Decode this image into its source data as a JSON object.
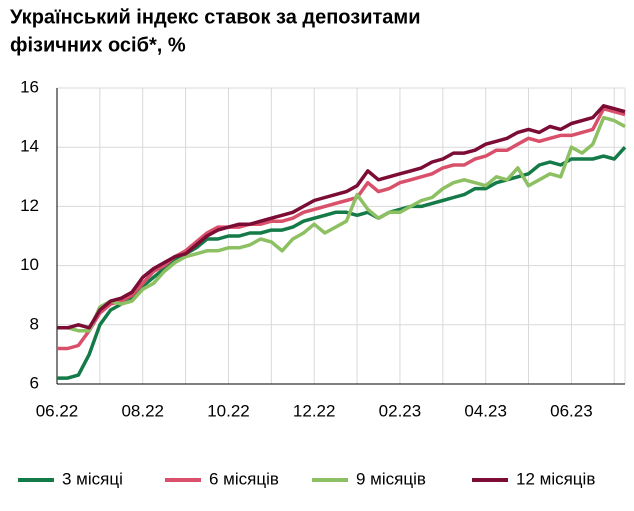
{
  "chart_data": {
    "type": "line",
    "title": [
      "Український індекс ставок за депозитами",
      "фізичних осіб*, %"
    ],
    "categories": [
      "06.22",
      null,
      null,
      null,
      null,
      null,
      null,
      null,
      "08.22",
      null,
      null,
      null,
      null,
      null,
      null,
      null,
      "10.22",
      null,
      null,
      null,
      null,
      null,
      null,
      null,
      "12.22",
      null,
      null,
      null,
      null,
      null,
      null,
      null,
      "02.23",
      null,
      null,
      null,
      null,
      null,
      null,
      null,
      "04.23",
      null,
      null,
      null,
      null,
      null,
      null,
      null,
      "06.23",
      null,
      null,
      null,
      null,
      null
    ],
    "series": [
      {
        "name": "3 місяці",
        "color": "#137a48",
        "values": [
          6.2,
          6.2,
          6.3,
          7.0,
          8.0,
          8.5,
          8.7,
          8.9,
          9.3,
          9.6,
          9.9,
          10.2,
          10.4,
          10.6,
          10.9,
          10.9,
          11.0,
          11.0,
          11.1,
          11.1,
          11.2,
          11.2,
          11.3,
          11.5,
          11.6,
          11.7,
          11.8,
          11.8,
          11.7,
          11.8,
          11.6,
          11.8,
          11.9,
          12.0,
          12.0,
          12.1,
          12.2,
          12.3,
          12.4,
          12.6,
          12.6,
          12.8,
          12.9,
          13.0,
          13.1,
          13.4,
          13.5,
          13.4,
          13.6,
          13.6,
          13.6,
          13.7,
          13.6,
          14.0
        ]
      },
      {
        "name": "6 місяців",
        "color": "#d9506b",
        "values": [
          7.2,
          7.2,
          7.3,
          7.8,
          8.4,
          8.7,
          8.8,
          9.0,
          9.4,
          9.8,
          10.0,
          10.3,
          10.5,
          10.8,
          11.1,
          11.3,
          11.3,
          11.3,
          11.4,
          11.4,
          11.5,
          11.5,
          11.6,
          11.8,
          11.9,
          12.0,
          12.1,
          12.2,
          12.3,
          12.8,
          12.5,
          12.6,
          12.8,
          12.9,
          13.0,
          13.1,
          13.3,
          13.4,
          13.4,
          13.6,
          13.7,
          13.9,
          13.9,
          14.1,
          14.3,
          14.2,
          14.3,
          14.4,
          14.4,
          14.5,
          14.6,
          15.3,
          15.2,
          15.1
        ]
      },
      {
        "name": "9 місяців",
        "color": "#8dc063",
        "values": [
          7.9,
          7.9,
          7.8,
          7.8,
          8.6,
          8.8,
          8.7,
          8.8,
          9.2,
          9.4,
          9.8,
          10.1,
          10.3,
          10.4,
          10.5,
          10.5,
          10.6,
          10.6,
          10.7,
          10.9,
          10.8,
          10.5,
          10.9,
          11.1,
          11.4,
          11.1,
          11.3,
          11.5,
          12.4,
          11.9,
          11.6,
          11.8,
          11.8,
          12.0,
          12.2,
          12.3,
          12.6,
          12.8,
          12.9,
          12.8,
          12.7,
          13.0,
          12.9,
          13.3,
          12.7,
          12.9,
          13.1,
          13.0,
          14.0,
          13.8,
          14.1,
          15.0,
          14.9,
          14.7
        ]
      },
      {
        "name": "12 місяців",
        "color": "#7b0c35",
        "values": [
          7.9,
          7.9,
          8.0,
          7.9,
          8.5,
          8.8,
          8.9,
          9.1,
          9.6,
          9.9,
          10.1,
          10.3,
          10.4,
          10.7,
          11.0,
          11.2,
          11.3,
          11.4,
          11.4,
          11.5,
          11.6,
          11.7,
          11.8,
          12.0,
          12.2,
          12.3,
          12.4,
          12.5,
          12.7,
          13.2,
          12.9,
          13.0,
          13.1,
          13.2,
          13.3,
          13.5,
          13.6,
          13.8,
          13.8,
          13.9,
          14.1,
          14.2,
          14.3,
          14.5,
          14.6,
          14.5,
          14.7,
          14.6,
          14.8,
          14.9,
          15.0,
          15.4,
          15.3,
          15.2
        ]
      }
    ],
    "ylim": [
      6,
      16
    ],
    "yticks": [
      6,
      8,
      10,
      12,
      14,
      16
    ],
    "grid": true
  }
}
